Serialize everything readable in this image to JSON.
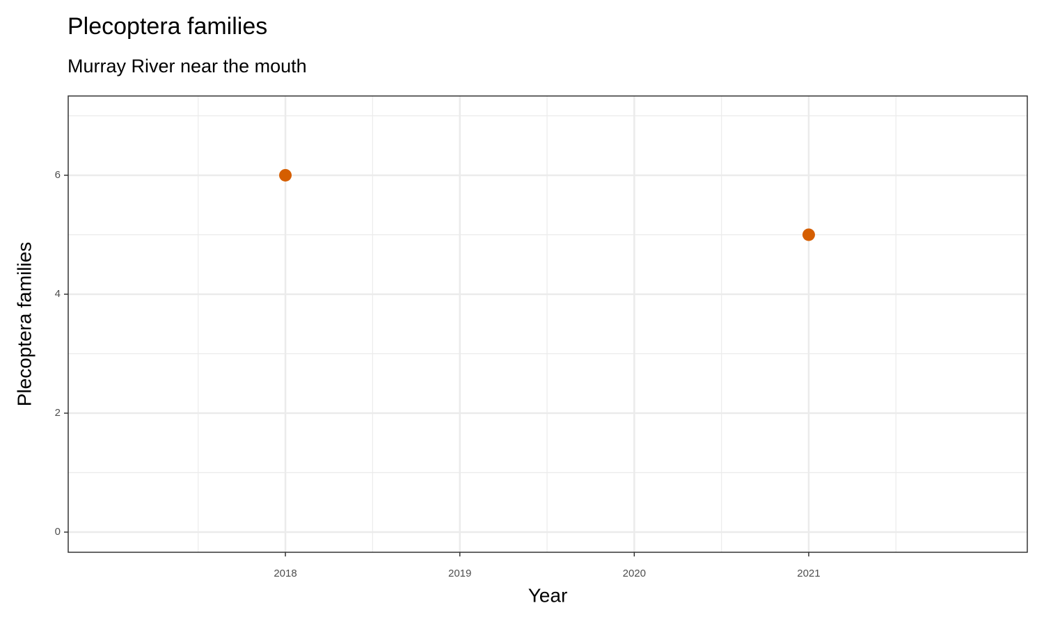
{
  "chart_data": {
    "type": "scatter",
    "title": "Plecoptera families",
    "subtitle": "Murray River near the mouth",
    "x_label": "Year",
    "y_label": "Plecoptera families",
    "series": [
      {
        "color": "#d55e00",
        "x": [
          2018,
          2021
        ],
        "values": [
          6,
          5
        ]
      }
    ],
    "xlim": [
      2016.755,
      2022.253
    ],
    "xticks": [
      2018,
      2019,
      2020,
      2021
    ],
    "ylim": [
      -0.339,
      7.333
    ],
    "yticks": [
      0,
      2,
      4,
      6
    ],
    "grid": true
  }
}
